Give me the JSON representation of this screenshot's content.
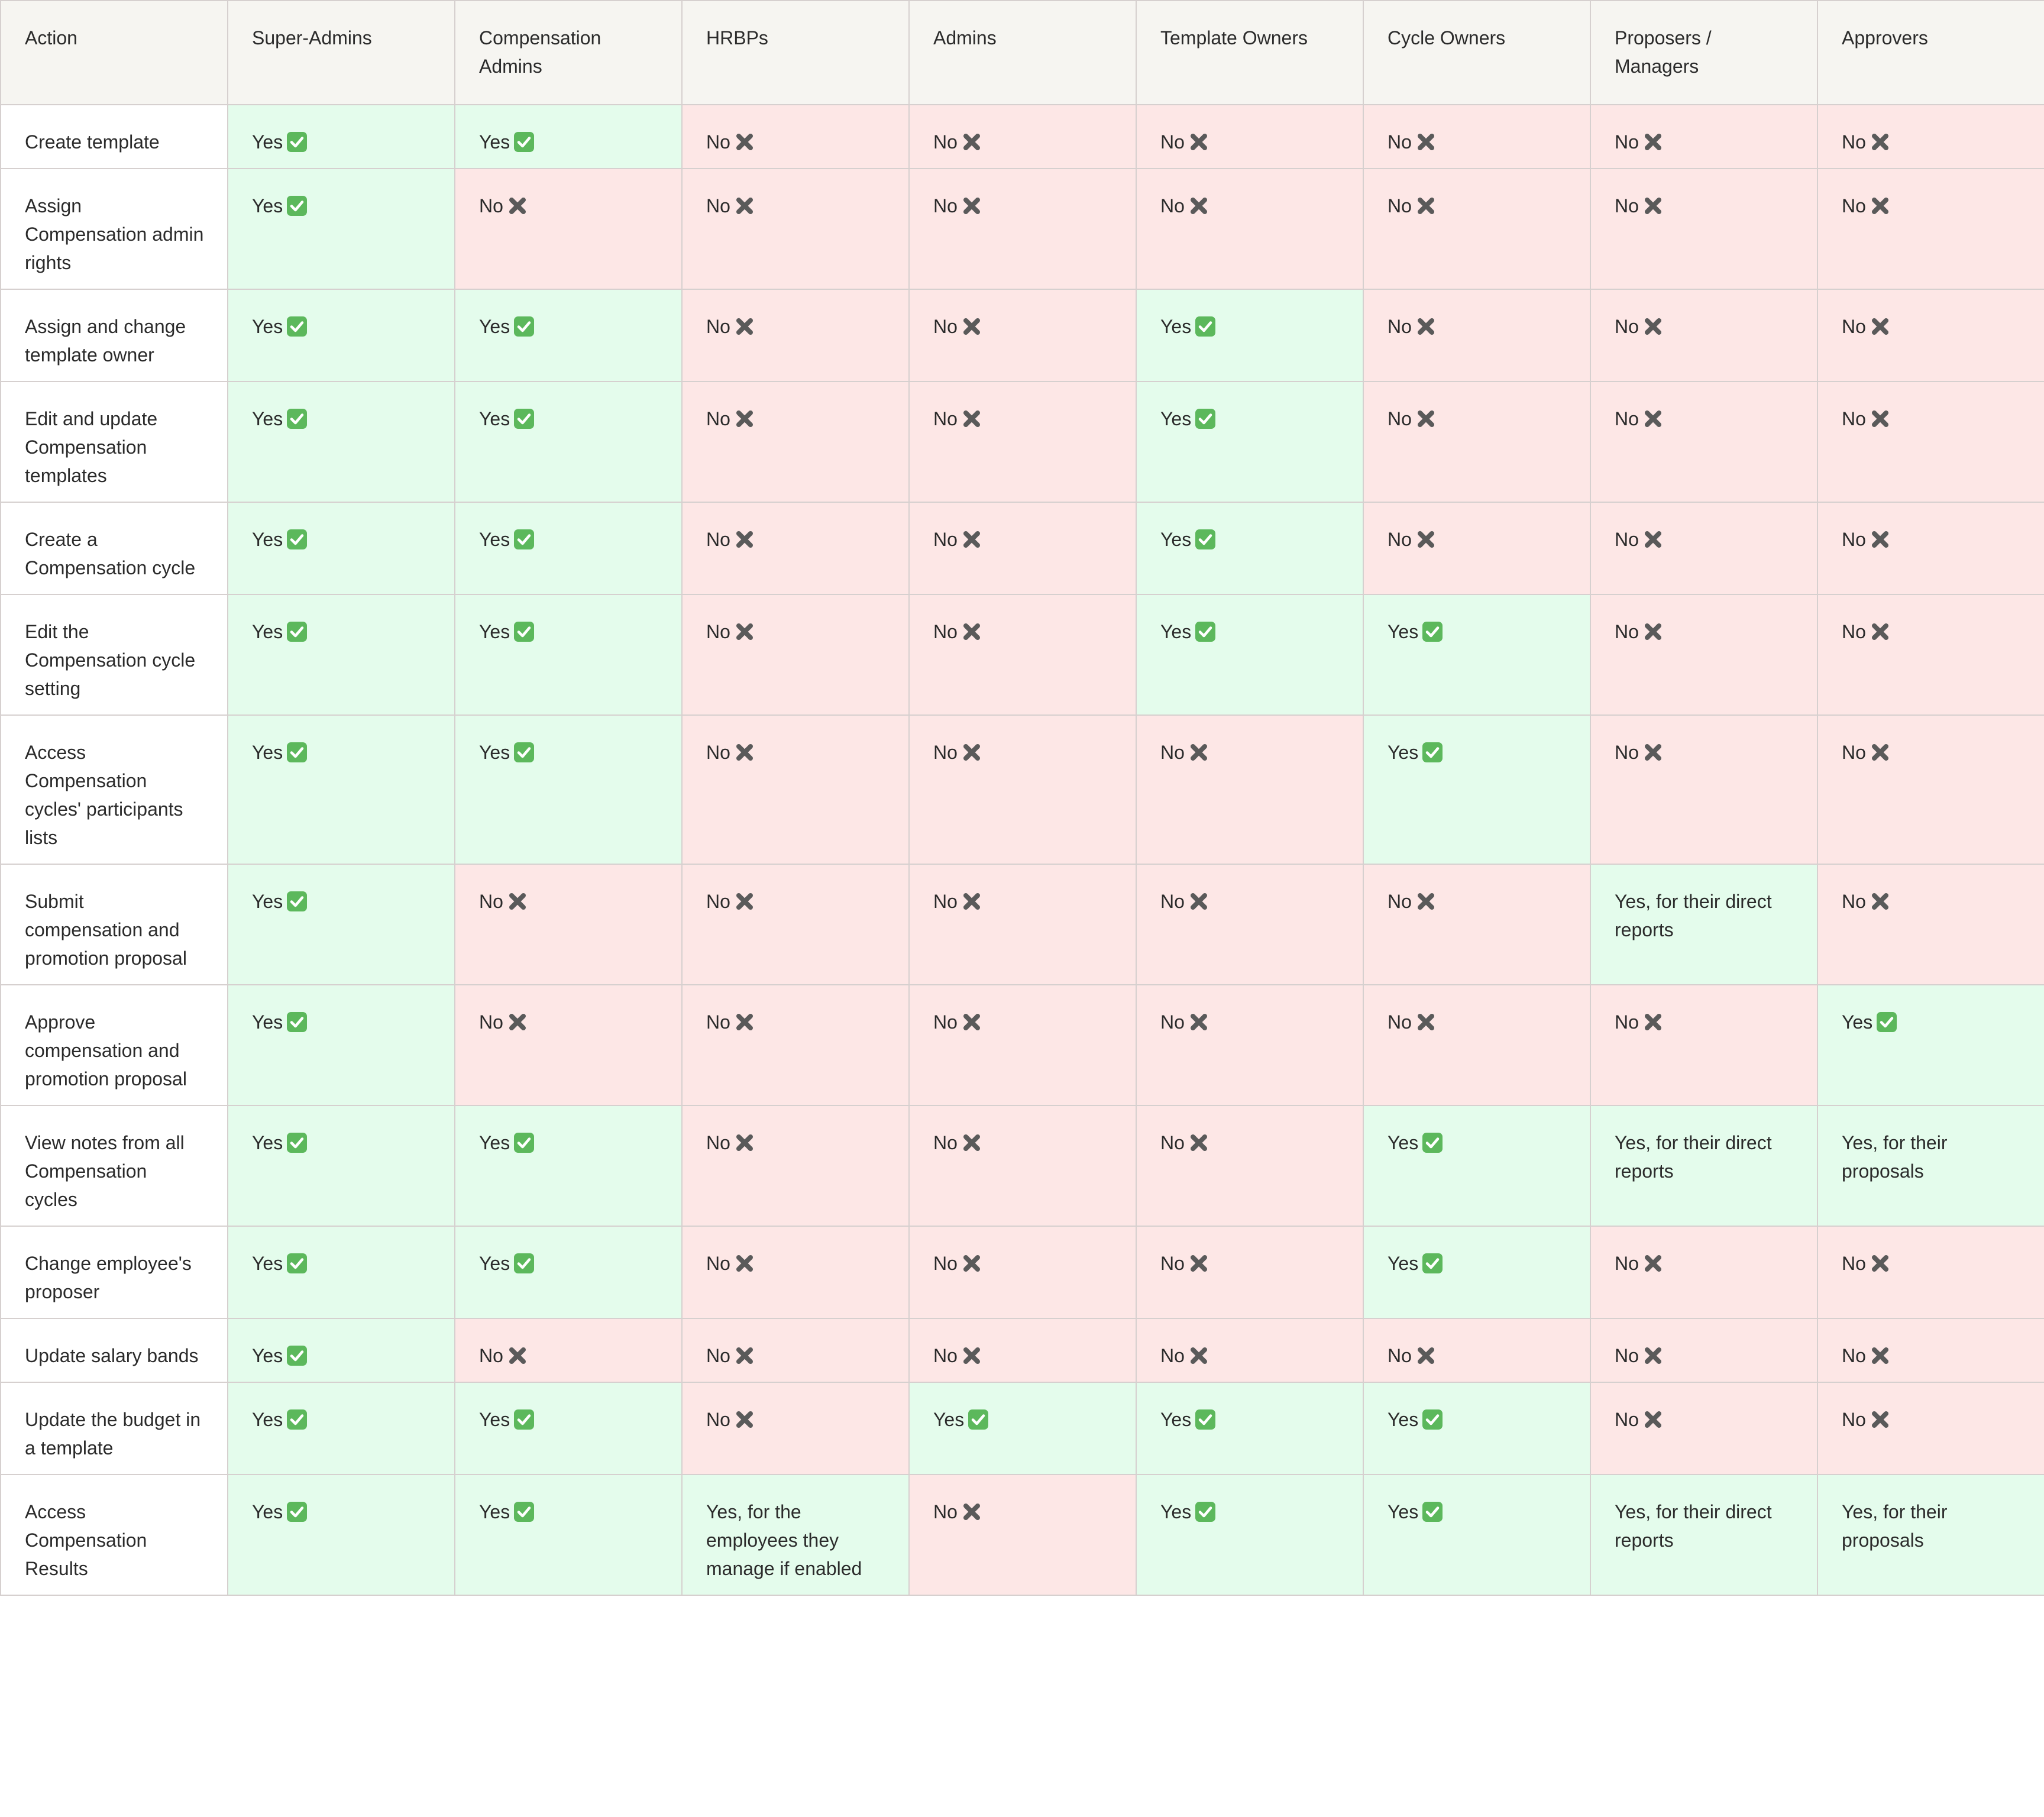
{
  "header": [
    "Action",
    "Super-Admins",
    "Compensation Admins",
    "HRBPs",
    "Admins",
    "Template Owners",
    "Cycle Owners",
    "Proposers / Managers",
    "Approvers"
  ],
  "rows": [
    {
      "action": "Create template",
      "cells": [
        {
          "text": "Yes",
          "status": "yes",
          "icon": "check-icon"
        },
        {
          "text": "Yes",
          "status": "yes",
          "icon": "check-icon"
        },
        {
          "text": "No",
          "status": "no",
          "icon": "cross-icon"
        },
        {
          "text": "No",
          "status": "no",
          "icon": "cross-icon"
        },
        {
          "text": "No",
          "status": "no",
          "icon": "cross-icon"
        },
        {
          "text": "No",
          "status": "no",
          "icon": "cross-icon"
        },
        {
          "text": "No",
          "status": "no",
          "icon": "cross-icon"
        },
        {
          "text": "No",
          "status": "no",
          "icon": "cross-icon"
        }
      ]
    },
    {
      "action": "Assign Compensation admin rights",
      "cells": [
        {
          "text": "Yes",
          "status": "yes",
          "icon": "check-icon"
        },
        {
          "text": "No",
          "status": "no",
          "icon": "cross-icon"
        },
        {
          "text": "No",
          "status": "no",
          "icon": "cross-icon"
        },
        {
          "text": "No",
          "status": "no",
          "icon": "cross-icon"
        },
        {
          "text": "No",
          "status": "no",
          "icon": "cross-icon"
        },
        {
          "text": "No",
          "status": "no",
          "icon": "cross-icon"
        },
        {
          "text": "No",
          "status": "no",
          "icon": "cross-icon"
        },
        {
          "text": "No",
          "status": "no",
          "icon": "cross-icon"
        }
      ]
    },
    {
      "action": "Assign and change template owner",
      "cells": [
        {
          "text": "Yes",
          "status": "yes",
          "icon": "check-icon"
        },
        {
          "text": "Yes",
          "status": "yes",
          "icon": "check-icon"
        },
        {
          "text": "No",
          "status": "no",
          "icon": "cross-icon"
        },
        {
          "text": "No",
          "status": "no",
          "icon": "cross-icon"
        },
        {
          "text": "Yes",
          "status": "yes",
          "icon": "check-icon"
        },
        {
          "text": "No",
          "status": "no",
          "icon": "cross-icon"
        },
        {
          "text": "No",
          "status": "no",
          "icon": "cross-icon"
        },
        {
          "text": "No",
          "status": "no",
          "icon": "cross-icon"
        }
      ]
    },
    {
      "action": "Edit and update Compensation templates",
      "cells": [
        {
          "text": "Yes",
          "status": "yes",
          "icon": "check-icon"
        },
        {
          "text": "Yes",
          "status": "yes",
          "icon": "check-icon"
        },
        {
          "text": "No",
          "status": "no",
          "icon": "cross-icon"
        },
        {
          "text": "No",
          "status": "no",
          "icon": "cross-icon"
        },
        {
          "text": "Yes",
          "status": "yes",
          "icon": "check-icon"
        },
        {
          "text": "No",
          "status": "no",
          "icon": "cross-icon"
        },
        {
          "text": "No",
          "status": "no",
          "icon": "cross-icon"
        },
        {
          "text": "No",
          "status": "no",
          "icon": "cross-icon"
        }
      ]
    },
    {
      "action": "Create a Compensation cycle",
      "cells": [
        {
          "text": "Yes",
          "status": "yes",
          "icon": "check-icon"
        },
        {
          "text": "Yes",
          "status": "yes",
          "icon": "check-icon"
        },
        {
          "text": "No",
          "status": "no",
          "icon": "cross-icon"
        },
        {
          "text": "No",
          "status": "no",
          "icon": "cross-icon"
        },
        {
          "text": "Yes",
          "status": "yes",
          "icon": "check-icon"
        },
        {
          "text": "No",
          "status": "no",
          "icon": "cross-icon"
        },
        {
          "text": "No",
          "status": "no",
          "icon": "cross-icon"
        },
        {
          "text": "No",
          "status": "no",
          "icon": "cross-icon"
        }
      ]
    },
    {
      "action": "Edit the Compensation cycle setting",
      "cells": [
        {
          "text": "Yes",
          "status": "yes",
          "icon": "check-icon"
        },
        {
          "text": "Yes",
          "status": "yes",
          "icon": "check-icon"
        },
        {
          "text": "No",
          "status": "no",
          "icon": "cross-icon"
        },
        {
          "text": "No",
          "status": "no",
          "icon": "cross-icon"
        },
        {
          "text": "Yes",
          "status": "yes",
          "icon": "check-icon"
        },
        {
          "text": "Yes",
          "status": "yes",
          "icon": "check-icon"
        },
        {
          "text": "No",
          "status": "no",
          "icon": "cross-icon"
        },
        {
          "text": "No",
          "status": "no",
          "icon": "cross-icon"
        }
      ]
    },
    {
      "action": "Access Compensation cycles' participants lists",
      "cells": [
        {
          "text": "Yes",
          "status": "yes",
          "icon": "check-icon"
        },
        {
          "text": "Yes",
          "status": "yes",
          "icon": "check-icon"
        },
        {
          "text": "No",
          "status": "no",
          "icon": "cross-icon"
        },
        {
          "text": "No",
          "status": "no",
          "icon": "cross-icon"
        },
        {
          "text": "No",
          "status": "no",
          "icon": "cross-icon"
        },
        {
          "text": "Yes",
          "status": "yes",
          "icon": "check-icon"
        },
        {
          "text": "No",
          "status": "no",
          "icon": "cross-icon"
        },
        {
          "text": "No",
          "status": "no",
          "icon": "cross-icon"
        }
      ]
    },
    {
      "action": "Submit compensation and promotion proposal",
      "cells": [
        {
          "text": "Yes",
          "status": "yes",
          "icon": "check-icon"
        },
        {
          "text": "No",
          "status": "no",
          "icon": "cross-icon"
        },
        {
          "text": "No",
          "status": "no",
          "icon": "cross-icon"
        },
        {
          "text": "No",
          "status": "no",
          "icon": "cross-icon"
        },
        {
          "text": "No",
          "status": "no",
          "icon": "cross-icon"
        },
        {
          "text": "No",
          "status": "no",
          "icon": "cross-icon"
        },
        {
          "text": "Yes, for their direct reports",
          "status": "yes",
          "icon": ""
        },
        {
          "text": "No",
          "status": "no",
          "icon": "cross-icon"
        }
      ]
    },
    {
      "action": "Approve compensation and promotion proposal",
      "cells": [
        {
          "text": "Yes",
          "status": "yes",
          "icon": "check-icon"
        },
        {
          "text": "No",
          "status": "no",
          "icon": "cross-icon"
        },
        {
          "text": "No",
          "status": "no",
          "icon": "cross-icon"
        },
        {
          "text": "No",
          "status": "no",
          "icon": "cross-icon"
        },
        {
          "text": "No",
          "status": "no",
          "icon": "cross-icon"
        },
        {
          "text": "No",
          "status": "no",
          "icon": "cross-icon"
        },
        {
          "text": "No",
          "status": "no",
          "icon": "cross-icon"
        },
        {
          "text": "Yes",
          "status": "yes",
          "icon": "check-icon"
        }
      ]
    },
    {
      "action": "View notes from all Compensation cycles",
      "cells": [
        {
          "text": "Yes",
          "status": "yes",
          "icon": "check-icon"
        },
        {
          "text": "Yes",
          "status": "yes",
          "icon": "check-icon"
        },
        {
          "text": "No",
          "status": "no",
          "icon": "cross-icon"
        },
        {
          "text": "No",
          "status": "no",
          "icon": "cross-icon"
        },
        {
          "text": "No",
          "status": "no",
          "icon": "cross-icon"
        },
        {
          "text": "Yes",
          "status": "yes",
          "icon": "check-icon"
        },
        {
          "text": "Yes, for their direct reports",
          "status": "yes",
          "icon": ""
        },
        {
          "text": "Yes, for their proposals",
          "status": "yes",
          "icon": ""
        }
      ]
    },
    {
      "action": "Change employee's proposer",
      "cells": [
        {
          "text": "Yes",
          "status": "yes",
          "icon": "check-icon"
        },
        {
          "text": "Yes",
          "status": "yes",
          "icon": "check-icon"
        },
        {
          "text": "No",
          "status": "no",
          "icon": "cross-icon"
        },
        {
          "text": "No",
          "status": "no",
          "icon": "cross-icon"
        },
        {
          "text": "No",
          "status": "no",
          "icon": "cross-icon"
        },
        {
          "text": "Yes",
          "status": "yes",
          "icon": "check-icon"
        },
        {
          "text": "No",
          "status": "no",
          "icon": "cross-icon"
        },
        {
          "text": "No",
          "status": "no",
          "icon": "cross-icon"
        }
      ]
    },
    {
      "action": "Update salary bands",
      "cells": [
        {
          "text": "Yes",
          "status": "yes",
          "icon": "check-icon"
        },
        {
          "text": "No",
          "status": "no",
          "icon": "cross-icon"
        },
        {
          "text": "No",
          "status": "no",
          "icon": "cross-icon"
        },
        {
          "text": "No",
          "status": "no",
          "icon": "cross-icon"
        },
        {
          "text": "No",
          "status": "no",
          "icon": "cross-icon"
        },
        {
          "text": "No",
          "status": "no",
          "icon": "cross-icon"
        },
        {
          "text": "No",
          "status": "no",
          "icon": "cross-icon"
        },
        {
          "text": "No",
          "status": "no",
          "icon": "cross-icon"
        }
      ]
    },
    {
      "action": "Update the budget in a template",
      "cells": [
        {
          "text": "Yes",
          "status": "yes",
          "icon": "check-icon"
        },
        {
          "text": "Yes",
          "status": "yes",
          "icon": "check-icon"
        },
        {
          "text": "No",
          "status": "no",
          "icon": "cross-icon"
        },
        {
          "text": "Yes",
          "status": "yes",
          "icon": "check-icon"
        },
        {
          "text": "Yes",
          "status": "yes",
          "icon": "check-icon"
        },
        {
          "text": "Yes",
          "status": "yes",
          "icon": "check-icon"
        },
        {
          "text": "No",
          "status": "no",
          "icon": "cross-icon"
        },
        {
          "text": "No",
          "status": "no",
          "icon": "cross-icon"
        }
      ]
    },
    {
      "action": "Access Compensation Results",
      "cells": [
        {
          "text": "Yes",
          "status": "yes",
          "icon": "check-icon"
        },
        {
          "text": "Yes",
          "status": "yes",
          "icon": "check-icon"
        },
        {
          "text": "Yes, for the employees they manage if enabled",
          "status": "yes",
          "icon": ""
        },
        {
          "text": "No",
          "status": "no",
          "icon": "cross-icon"
        },
        {
          "text": "Yes",
          "status": "yes",
          "icon": "check-icon"
        },
        {
          "text": "Yes",
          "status": "yes",
          "icon": "check-icon"
        },
        {
          "text": "Yes, for their direct reports",
          "status": "yes",
          "icon": ""
        },
        {
          "text": "Yes, for their proposals",
          "status": "yes",
          "icon": ""
        }
      ]
    }
  ],
  "colors": {
    "header_bg": "#f6f5f1",
    "yes_bg": "#e4fcec",
    "no_bg": "#fde7e6",
    "border": "#d6d0cf",
    "check_green": "#5cb85c",
    "cross_gray": "#5a5a5a"
  }
}
